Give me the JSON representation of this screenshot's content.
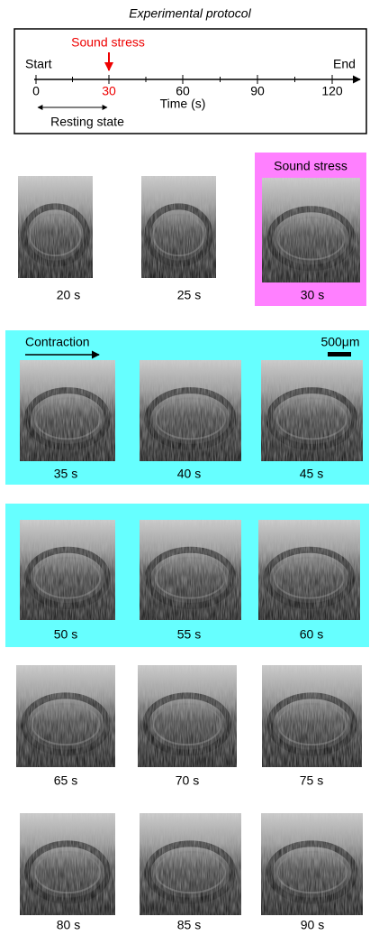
{
  "protocol": {
    "title": "Experimental protocol",
    "marker_label": "Sound stress",
    "start_label": "Start",
    "end_label": "End",
    "ticks": [
      "0",
      "30",
      "60",
      "90",
      "120"
    ],
    "axis_label": "Time (s)",
    "resting_label": "Resting state"
  },
  "stress_label": "Sound stress",
  "contraction_label": "Contraction",
  "scale_label": "500μm",
  "frames": [
    "20 s",
    "25 s",
    "30 s",
    "35 s",
    "40 s",
    "45 s",
    "50 s",
    "55 s",
    "60 s",
    "65 s",
    "70 s",
    "75 s",
    "80 s",
    "85 s",
    "90 s"
  ]
}
